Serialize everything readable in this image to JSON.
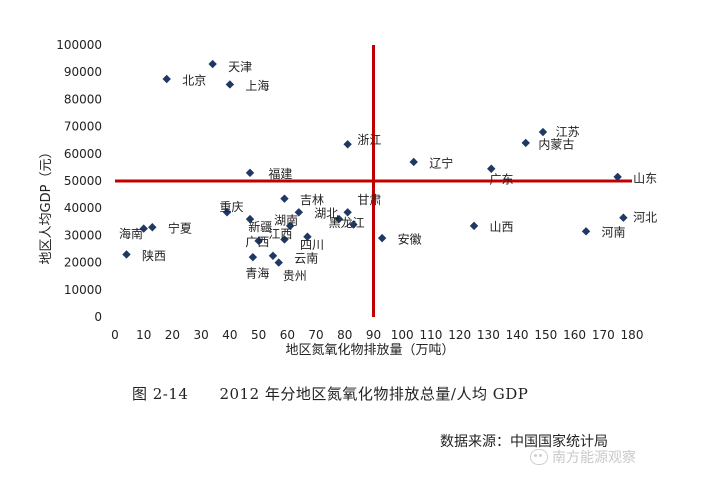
{
  "chart_data": {
    "type": "scatter",
    "title": "",
    "xlabel": "地区氮氧化物排放量（万吨）",
    "ylabel": "地区人均GDP（元）",
    "xlim": [
      0,
      180
    ],
    "ylim": [
      0,
      100000
    ],
    "xticks": [
      0,
      10,
      20,
      30,
      40,
      50,
      60,
      70,
      80,
      90,
      100,
      110,
      120,
      130,
      140,
      150,
      160,
      170,
      180
    ],
    "yticks": [
      0,
      10000,
      20000,
      30000,
      40000,
      50000,
      60000,
      70000,
      80000,
      90000,
      100000
    ],
    "reference_lines": {
      "x": 90,
      "y": 50000,
      "color": "#c00000"
    },
    "marker_color": "#1f3864",
    "grid": false,
    "legend": "none",
    "points": [
      {
        "label": "天津",
        "x": 34,
        "y": 93000
      },
      {
        "label": "北京",
        "x": 18,
        "y": 87500
      },
      {
        "label": "上海",
        "x": 40,
        "y": 85500
      },
      {
        "label": "江苏",
        "x": 149,
        "y": 68000
      },
      {
        "label": "内蒙古",
        "x": 143,
        "y": 64000
      },
      {
        "label": "浙江",
        "x": 81,
        "y": 63500
      },
      {
        "label": "辽宁",
        "x": 104,
        "y": 57000
      },
      {
        "label": "广东",
        "x": 131,
        "y": 54500
      },
      {
        "label": "福建",
        "x": 47,
        "y": 53000
      },
      {
        "label": "山东",
        "x": 175,
        "y": 51500
      },
      {
        "label": "吉林",
        "x": 59,
        "y": 43500
      },
      {
        "label": "甘肃",
        "x": 81,
        "y": 38500
      },
      {
        "label": "重庆",
        "x": 39,
        "y": 38500
      },
      {
        "label": "湖北",
        "x": 64,
        "y": 38500
      },
      {
        "label": "河北",
        "x": 177,
        "y": 36500
      },
      {
        "label": "湖南",
        "x": 47,
        "y": 36000
      },
      {
        "label": "黑龙江",
        "x": 78,
        "y": 36000
      },
      {
        "label": "新疆",
        "x": 61,
        "y": 33500
      },
      {
        "label": "宁夏",
        "x": 13,
        "y": 33000
      },
      {
        "label": "海南",
        "x": 10,
        "y": 32500
      },
      {
        "label": "山西",
        "x": 125,
        "y": 33500
      },
      {
        "label": "江西",
        "x": 83,
        "y": 34000
      },
      {
        "label": "河南",
        "x": 164,
        "y": 31500
      },
      {
        "label": "四川",
        "x": 67,
        "y": 29500
      },
      {
        "label": "广西",
        "x": 59,
        "y": 28500
      },
      {
        "label": "安徽",
        "x": 93,
        "y": 29000
      },
      {
        "label": "重庆2",
        "x": 50,
        "y": 28000
      },
      {
        "label": "陕西",
        "x": 4,
        "y": 23000
      },
      {
        "label": "青海",
        "x": 48,
        "y": 22000
      },
      {
        "label": "云南",
        "x": 55,
        "y": 22500
      },
      {
        "label": "贵州",
        "x": 57,
        "y": 20000
      }
    ],
    "labels": [
      {
        "text": "天津",
        "x": 38,
        "y": 92000
      },
      {
        "text": "北京",
        "x": 22,
        "y": 87000
      },
      {
        "text": "上海",
        "x": 44,
        "y": 85000
      },
      {
        "text": "江苏",
        "x": 152,
        "y": 68000
      },
      {
        "text": "内蒙古",
        "x": 146,
        "y": 63500
      },
      {
        "text": "浙江",
        "x": 83,
        "y": 65000
      },
      {
        "text": "辽宁",
        "x": 108,
        "y": 56500
      },
      {
        "text": "广东",
        "x": 129,
        "y": 50500
      },
      {
        "text": "福建",
        "x": 52,
        "y": 52500
      },
      {
        "text": "山东",
        "x": 179,
        "y": 51000
      },
      {
        "text": "吉林",
        "x": 63,
        "y": 43000
      },
      {
        "text": "甘肃",
        "x": 83,
        "y": 43000
      },
      {
        "text": "重庆",
        "x": 35,
        "y": 40500
      },
      {
        "text": "湖北",
        "x": 68,
        "y": 38000
      },
      {
        "text": "河北",
        "x": 179,
        "y": 36500
      },
      {
        "text": "湖南",
        "x": 54,
        "y": 35500
      },
      {
        "text": "黑龙江",
        "x": 73,
        "y": 34500
      },
      {
        "text": "新疆",
        "x": 45,
        "y": 33000
      },
      {
        "text": "宁夏",
        "x": 17,
        "y": 32500
      },
      {
        "text": "海南",
        "x": 0,
        "y": 30500
      },
      {
        "text": "山西",
        "x": 129,
        "y": 33000
      },
      {
        "text": "江西",
        "x": 52,
        "y": 30500
      },
      {
        "text": "河南",
        "x": 168,
        "y": 31000
      },
      {
        "text": "四川",
        "x": 63,
        "y": 26500
      },
      {
        "text": "广西",
        "x": 44,
        "y": 27500
      },
      {
        "text": "安徽",
        "x": 97,
        "y": 28500
      },
      {
        "text": "陕西",
        "x": 8,
        "y": 22500
      },
      {
        "text": "青海",
        "x": 44,
        "y": 16000
      },
      {
        "text": "云南",
        "x": 61,
        "y": 21500
      },
      {
        "text": "贵州",
        "x": 57,
        "y": 15000
      }
    ]
  },
  "caption": "图 2-14　　2012 年分地区氮氧化物排放总量/人均 GDP",
  "source": "数据来源：中国国家统计局",
  "watermark": "南方能源观察"
}
